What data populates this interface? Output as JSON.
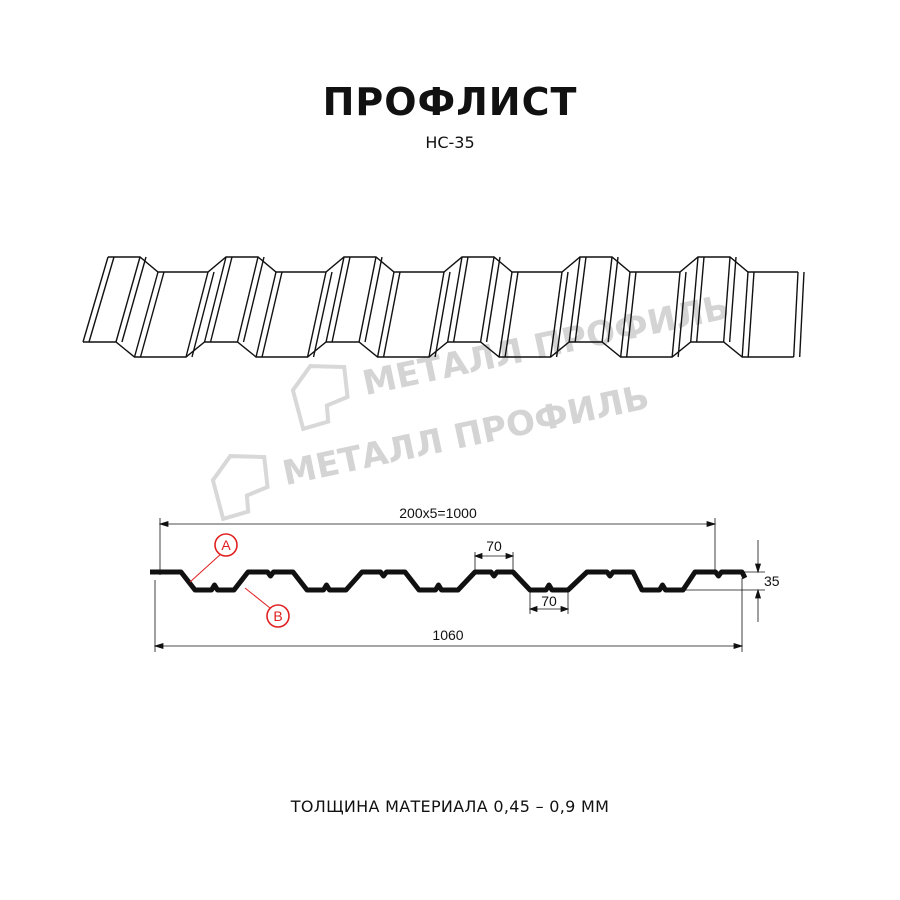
{
  "header": {
    "title": "ПРОФЛИСТ",
    "subtitle": "НС-35"
  },
  "watermark": {
    "text": "МЕТАЛЛ ПРОФИЛЬ",
    "color": "#d4d4d4"
  },
  "drawing": {
    "dimensions": {
      "cover_width": "200x5=1000",
      "total_width": "1060",
      "crest_width": "70",
      "valley_width": "70",
      "height": "35"
    },
    "callouts": {
      "a": "A",
      "b": "B",
      "color": "#e02020"
    }
  },
  "footer": {
    "thickness": "ТОЛЩИНА МАТЕРИАЛА 0,45 – 0,9 ММ"
  }
}
